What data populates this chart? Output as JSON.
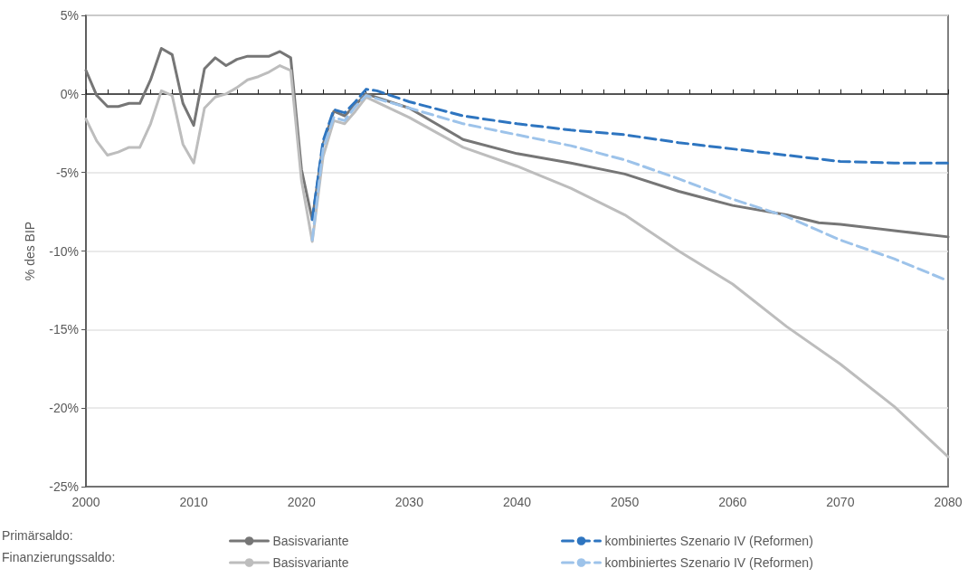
{
  "chart_data": {
    "type": "line",
    "ylabel": "% des BIP",
    "xlim": [
      2000,
      2080
    ],
    "xticks": [
      2000,
      2010,
      2020,
      2030,
      2040,
      2050,
      2060,
      2070,
      2080
    ],
    "ylim": [
      -25,
      5
    ],
    "yticks": [
      {
        "value": -25,
        "label": "-25%"
      },
      {
        "value": -20,
        "label": "-20%"
      },
      {
        "value": -15,
        "label": "-15%"
      },
      {
        "value": -10,
        "label": "-10%"
      },
      {
        "value": -5,
        "label": "-5%"
      },
      {
        "value": 0,
        "label": "0%"
      },
      {
        "value": 5,
        "label": "5%"
      }
    ],
    "grid": "y",
    "legend": "bottom",
    "marker": "none",
    "annotations": [
      "Primärsaldo:",
      "Finanzierungssaldo:"
    ],
    "series": [
      {
        "name": "Basisvariante",
        "color": "#767676",
        "line_style": "solid",
        "x": [
          2000,
          2001,
          2002,
          2003,
          2004,
          2005,
          2006,
          2007,
          2008,
          2009,
          2010,
          2011,
          2012,
          2013,
          2014,
          2015,
          2016,
          2017,
          2018,
          2019,
          2020,
          2021,
          2022,
          2023,
          2024,
          2025,
          2026,
          2030,
          2035,
          2040,
          2045,
          2050,
          2055,
          2060,
          2065,
          2068,
          2070,
          2075,
          2080
        ],
        "values": [
          1.5,
          -0.1,
          -0.8,
          -0.8,
          -0.6,
          -0.6,
          0.9,
          2.9,
          2.5,
          -0.6,
          -2.0,
          1.6,
          2.3,
          1.8,
          2.2,
          2.4,
          2.4,
          2.4,
          2.7,
          2.3,
          -4.8,
          -8.0,
          -3.2,
          -1.1,
          -1.4,
          -0.7,
          0.0,
          -0.9,
          -2.9,
          -3.8,
          -4.4,
          -5.1,
          -6.2,
          -7.1,
          -7.7,
          -8.2,
          -8.3,
          -8.7,
          -9.1
        ]
      },
      {
        "name": "kombiniertes Szenario IV (Reformen)",
        "color": "#2e75c0",
        "line_style": "dashed",
        "x": [
          2021,
          2022,
          2023,
          2024,
          2025,
          2026,
          2027,
          2030,
          2035,
          2040,
          2045,
          2050,
          2055,
          2060,
          2065,
          2070,
          2075,
          2080
        ],
        "values": [
          -8.0,
          -3.0,
          -1.0,
          -1.2,
          -0.5,
          0.3,
          0.2,
          -0.5,
          -1.4,
          -1.9,
          -2.3,
          -2.6,
          -3.1,
          -3.5,
          -3.9,
          -4.3,
          -4.4,
          -4.4
        ]
      },
      {
        "name": "Basisvariante",
        "color": "#bdbdbd",
        "line_style": "solid",
        "x": [
          2000,
          2001,
          2002,
          2003,
          2004,
          2005,
          2006,
          2007,
          2008,
          2009,
          2010,
          2011,
          2012,
          2013,
          2014,
          2015,
          2016,
          2017,
          2018,
          2019,
          2020,
          2021,
          2022,
          2023,
          2024,
          2025,
          2026,
          2030,
          2035,
          2040,
          2045,
          2050,
          2055,
          2060,
          2065,
          2070,
          2075,
          2080
        ],
        "values": [
          -1.6,
          -3.0,
          -3.9,
          -3.7,
          -3.4,
          -3.4,
          -1.9,
          0.2,
          -0.1,
          -3.2,
          -4.4,
          -0.9,
          -0.2,
          0.0,
          0.4,
          0.9,
          1.1,
          1.4,
          1.8,
          1.5,
          -5.5,
          -9.4,
          -4.0,
          -1.7,
          -1.9,
          -1.1,
          -0.2,
          -1.5,
          -3.4,
          -4.6,
          -6.0,
          -7.7,
          -10.0,
          -12.1,
          -14.8,
          -17.2,
          -19.9,
          -23.1
        ]
      },
      {
        "name": "kombiniertes Szenario IV (Reformen)",
        "color": "#9dc3ea",
        "line_style": "dashed",
        "x": [
          2021,
          2022,
          2023,
          2024,
          2025,
          2026,
          2030,
          2035,
          2040,
          2045,
          2050,
          2055,
          2060,
          2065,
          2070,
          2075,
          2080
        ],
        "values": [
          -9.3,
          -3.5,
          -1.5,
          -1.7,
          -0.8,
          -0.1,
          -0.9,
          -1.9,
          -2.6,
          -3.3,
          -4.2,
          -5.4,
          -6.7,
          -7.8,
          -9.3,
          -10.5,
          -11.9
        ]
      }
    ]
  }
}
